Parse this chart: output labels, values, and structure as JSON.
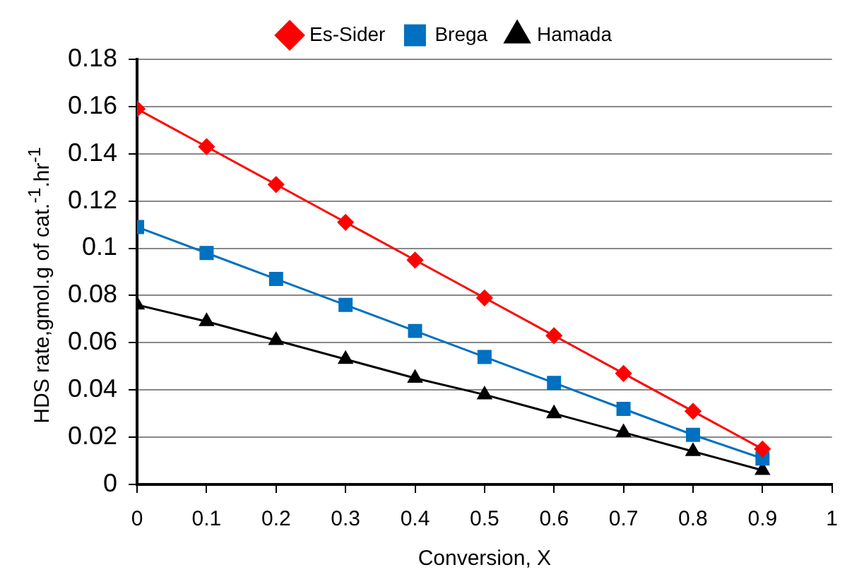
{
  "chart_data": {
    "type": "line",
    "xlabel": "Conversion, X",
    "ylabel": "HDS rate,gmol.g of cat.$^{-1}$.hr$^{-1}$",
    "x": [
      0,
      0.1,
      0.2,
      0.3,
      0.4,
      0.5,
      0.6,
      0.7,
      0.8,
      0.9
    ],
    "series": [
      {
        "name": "Es-Sider",
        "color": "#ff0000",
        "marker": "diamond",
        "values": [
          0.159,
          0.143,
          0.127,
          0.111,
          0.095,
          0.079,
          0.063,
          0.047,
          0.031,
          0.015
        ]
      },
      {
        "name": "Brega",
        "color": "#0070c0",
        "marker": "square",
        "values": [
          0.109,
          0.098,
          0.087,
          0.076,
          0.065,
          0.054,
          0.043,
          0.032,
          0.021,
          0.011
        ]
      },
      {
        "name": "Hamada",
        "color": "#000000",
        "marker": "triangle",
        "values": [
          0.076,
          0.069,
          0.061,
          0.053,
          0.045,
          0.038,
          0.03,
          0.022,
          0.014,
          0.006
        ]
      }
    ],
    "xlim": [
      0,
      1
    ],
    "xticks": [
      0,
      0.1,
      0.2,
      0.3,
      0.4,
      0.5,
      0.6,
      0.7,
      0.8,
      0.9,
      1
    ],
    "ylim": [
      0,
      0.18
    ],
    "yticks": [
      0,
      0.02,
      0.04,
      0.06,
      0.08,
      0.1,
      0.12,
      0.14,
      0.16,
      0.18
    ],
    "grid": "y",
    "legend": "top"
  }
}
